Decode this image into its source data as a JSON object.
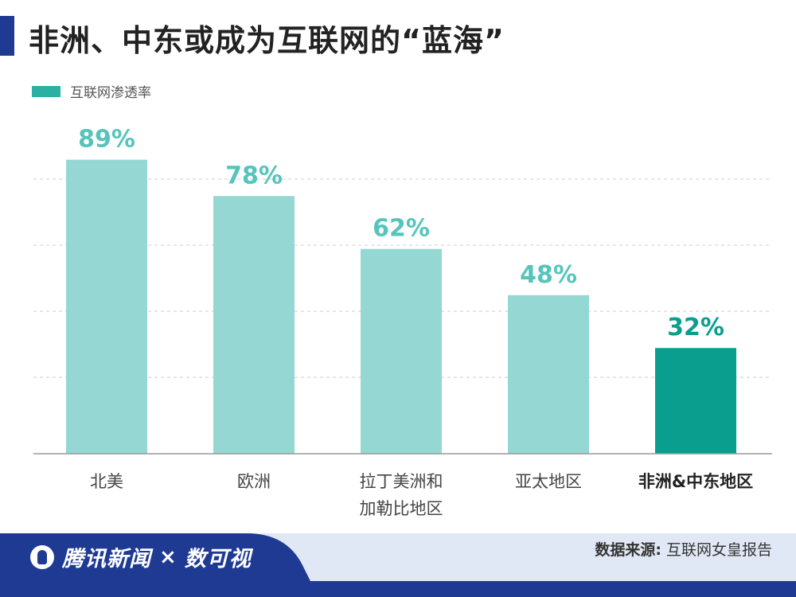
{
  "title": "非洲、中东或成为互联网的“蓝海”",
  "legend": {
    "label": "互联网渗透率",
    "color": "#2ab1a3"
  },
  "colors": {
    "accent": "#1f3a93",
    "bar_light": "#95d7d2",
    "bar_highlight": "#0a9e8f",
    "label_light": "#55c5bb",
    "label_highlight": "#0a9e8f",
    "footer": "#1f3a93",
    "footer_right": "#e1e8f5"
  },
  "chart_data": {
    "type": "bar",
    "categories": [
      [
        "北美"
      ],
      [
        "欧洲"
      ],
      [
        "拉丁美洲和",
        "加勒比地区"
      ],
      [
        "亚太地区"
      ],
      [
        "非洲&中东地区"
      ]
    ],
    "values": [
      89,
      78,
      62,
      48,
      32
    ],
    "value_labels": [
      "89%",
      "78%",
      "62%",
      "48%",
      "32%"
    ],
    "highlight_index": 4,
    "ylim": [
      0,
      100
    ],
    "grid": true
  },
  "footer": {
    "brand": "腾讯新闻",
    "separator": "×",
    "partner": "数可视",
    "source_label": "数据来源:",
    "source_value": "互联网女皇报告"
  }
}
